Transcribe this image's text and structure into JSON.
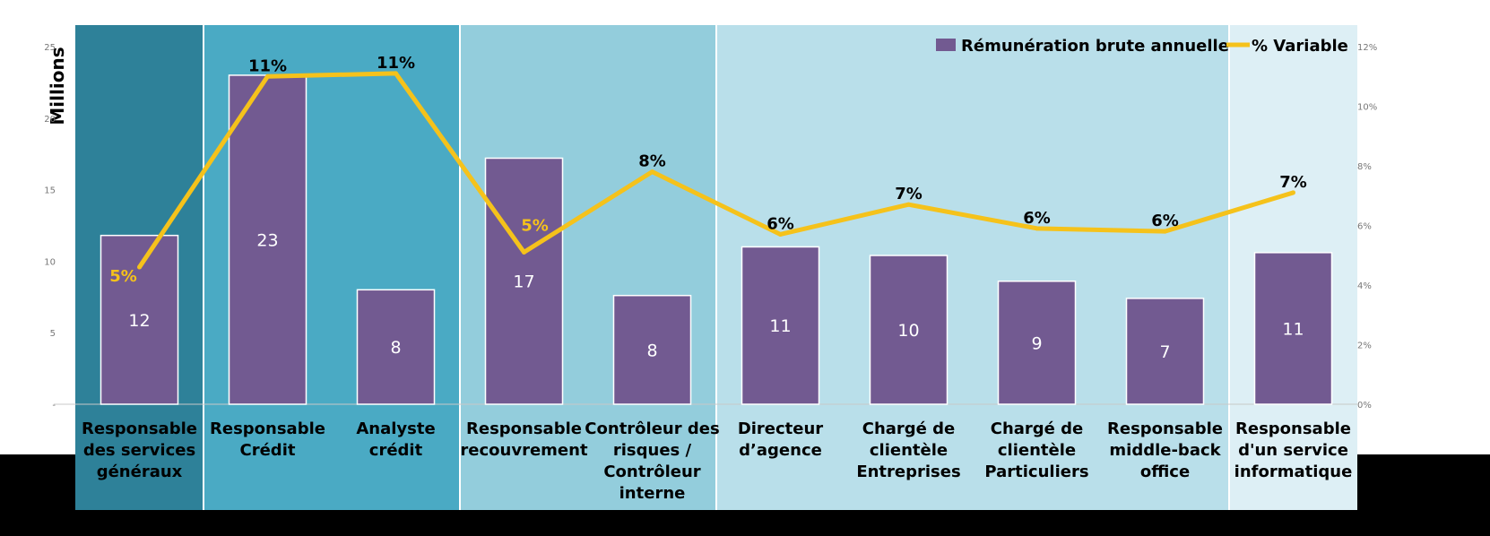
{
  "chart_data": {
    "type": "bar",
    "title": "",
    "xlabel": "",
    "ylabel": "Millions",
    "ylim": [
      0,
      25
    ],
    "y2lim": [
      0,
      12
    ],
    "y_ticks": [
      "-",
      "5",
      "10",
      "15",
      "20",
      "25"
    ],
    "y2_ticks": [
      "0%",
      "2%",
      "4%",
      "6%",
      "8%",
      "10%",
      "12%"
    ],
    "legend_position": "top-right",
    "categories": [
      "Responsable des services généraux",
      "Responsable Crédit",
      "Analyste crédit",
      "Responsable recouvrement",
      "Contrôleur des risques / Contrôleur interne",
      "Directeur d’agence",
      "Chargé de clientèle Entreprises",
      "Chargé de clientèle Particuliers",
      "Responsable middle-back office",
      "Responsable d'un service informatique"
    ],
    "category_lines": [
      [
        "Responsable",
        "des services",
        "généraux"
      ],
      [
        "Responsable",
        "Crédit"
      ],
      [
        "Analyste",
        "crédit"
      ],
      [
        "Responsable",
        "recouvrement"
      ],
      [
        "Contrôleur des",
        "risques /",
        "Contrôleur",
        "interne"
      ],
      [
        "Directeur",
        "d’agence"
      ],
      [
        "Chargé de",
        "clientèle",
        "Entreprises"
      ],
      [
        "Chargé de",
        "clientèle",
        "Particuliers"
      ],
      [
        "Responsable",
        "middle-back",
        "office"
      ],
      [
        "Responsable",
        "d'un service",
        "informatique"
      ]
    ],
    "groups": [
      {
        "members": [
          0
        ],
        "color": "#2e8199"
      },
      {
        "members": [
          1,
          2
        ],
        "color": "#4aaac4"
      },
      {
        "members": [
          3,
          4
        ],
        "color": "#93cddc"
      },
      {
        "members": [
          5,
          6,
          7,
          8
        ],
        "color": "#b9dfea"
      },
      {
        "members": [
          9
        ],
        "color": "#ddeff5"
      }
    ],
    "series": [
      {
        "name": "Rémunération brute annuelle",
        "kind": "bar",
        "axis": "left",
        "color": "#725a91",
        "values": [
          12,
          23,
          8,
          17,
          8,
          11,
          10,
          9,
          7,
          11
        ],
        "heights": [
          11.8,
          23.0,
          8.0,
          17.2,
          7.6,
          11.0,
          10.4,
          8.6,
          7.4,
          10.6
        ],
        "labels": [
          "12",
          "23",
          "8",
          "17",
          "8",
          "11",
          "10",
          "9",
          "7",
          "11"
        ]
      },
      {
        "name": "% Variable",
        "kind": "line",
        "axis": "right",
        "color": "#f5c21b",
        "values": [
          4.6,
          11.0,
          11.1,
          5.1,
          7.8,
          5.7,
          6.7,
          5.9,
          5.8,
          7.1
        ],
        "labels": [
          "5%",
          "11%",
          "11%",
          "5%",
          "8%",
          "6%",
          "7%",
          "6%",
          "6%",
          "7%"
        ]
      }
    ]
  }
}
